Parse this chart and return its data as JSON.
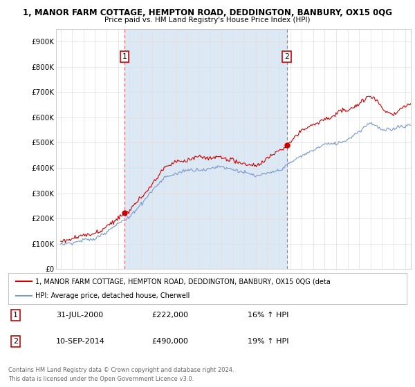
{
  "title1": "1, MANOR FARM COTTAGE, HEMPTON ROAD, DEDDINGTON, BANBURY, OX15 0QG",
  "title2": "Price paid vs. HM Land Registry's House Price Index (HPI)",
  "background_color": "#ffffff",
  "plot_bg_color": "#ffffff",
  "grid_color": "#dddddd",
  "red_line_color": "#cc0000",
  "blue_line_color": "#7799cc",
  "dashed_red_color": "#dd6666",
  "shade_color": "#dde8f5",
  "ylim": [
    0,
    950000
  ],
  "yticks": [
    0,
    100000,
    200000,
    300000,
    400000,
    500000,
    600000,
    700000,
    800000,
    900000
  ],
  "ytick_labels": [
    "£0",
    "£100K",
    "£200K",
    "£300K",
    "£400K",
    "£500K",
    "£600K",
    "£700K",
    "£800K",
    "£900K"
  ],
  "xlim_left": 1994.6,
  "xlim_right": 2025.5,
  "sale1_year": 2000.58,
  "sale1_price": 222000,
  "sale1_label": "1",
  "sale2_year": 2014.69,
  "sale2_price": 490000,
  "sale2_label": "2",
  "legend_line1": "1, MANOR FARM COTTAGE, HEMPTON ROAD, DEDDINGTON, BANBURY, OX15 0QG (deta",
  "legend_line2": "HPI: Average price, detached house, Cherwell",
  "footer1": "Contains HM Land Registry data © Crown copyright and database right 2024.",
  "footer2": "This data is licensed under the Open Government Licence v3.0.",
  "table_row1": [
    "1",
    "31-JUL-2000",
    "£222,000",
    "16% ↑ HPI"
  ],
  "table_row2": [
    "2",
    "10-SEP-2014",
    "£490,000",
    "19% ↑ HPI"
  ]
}
